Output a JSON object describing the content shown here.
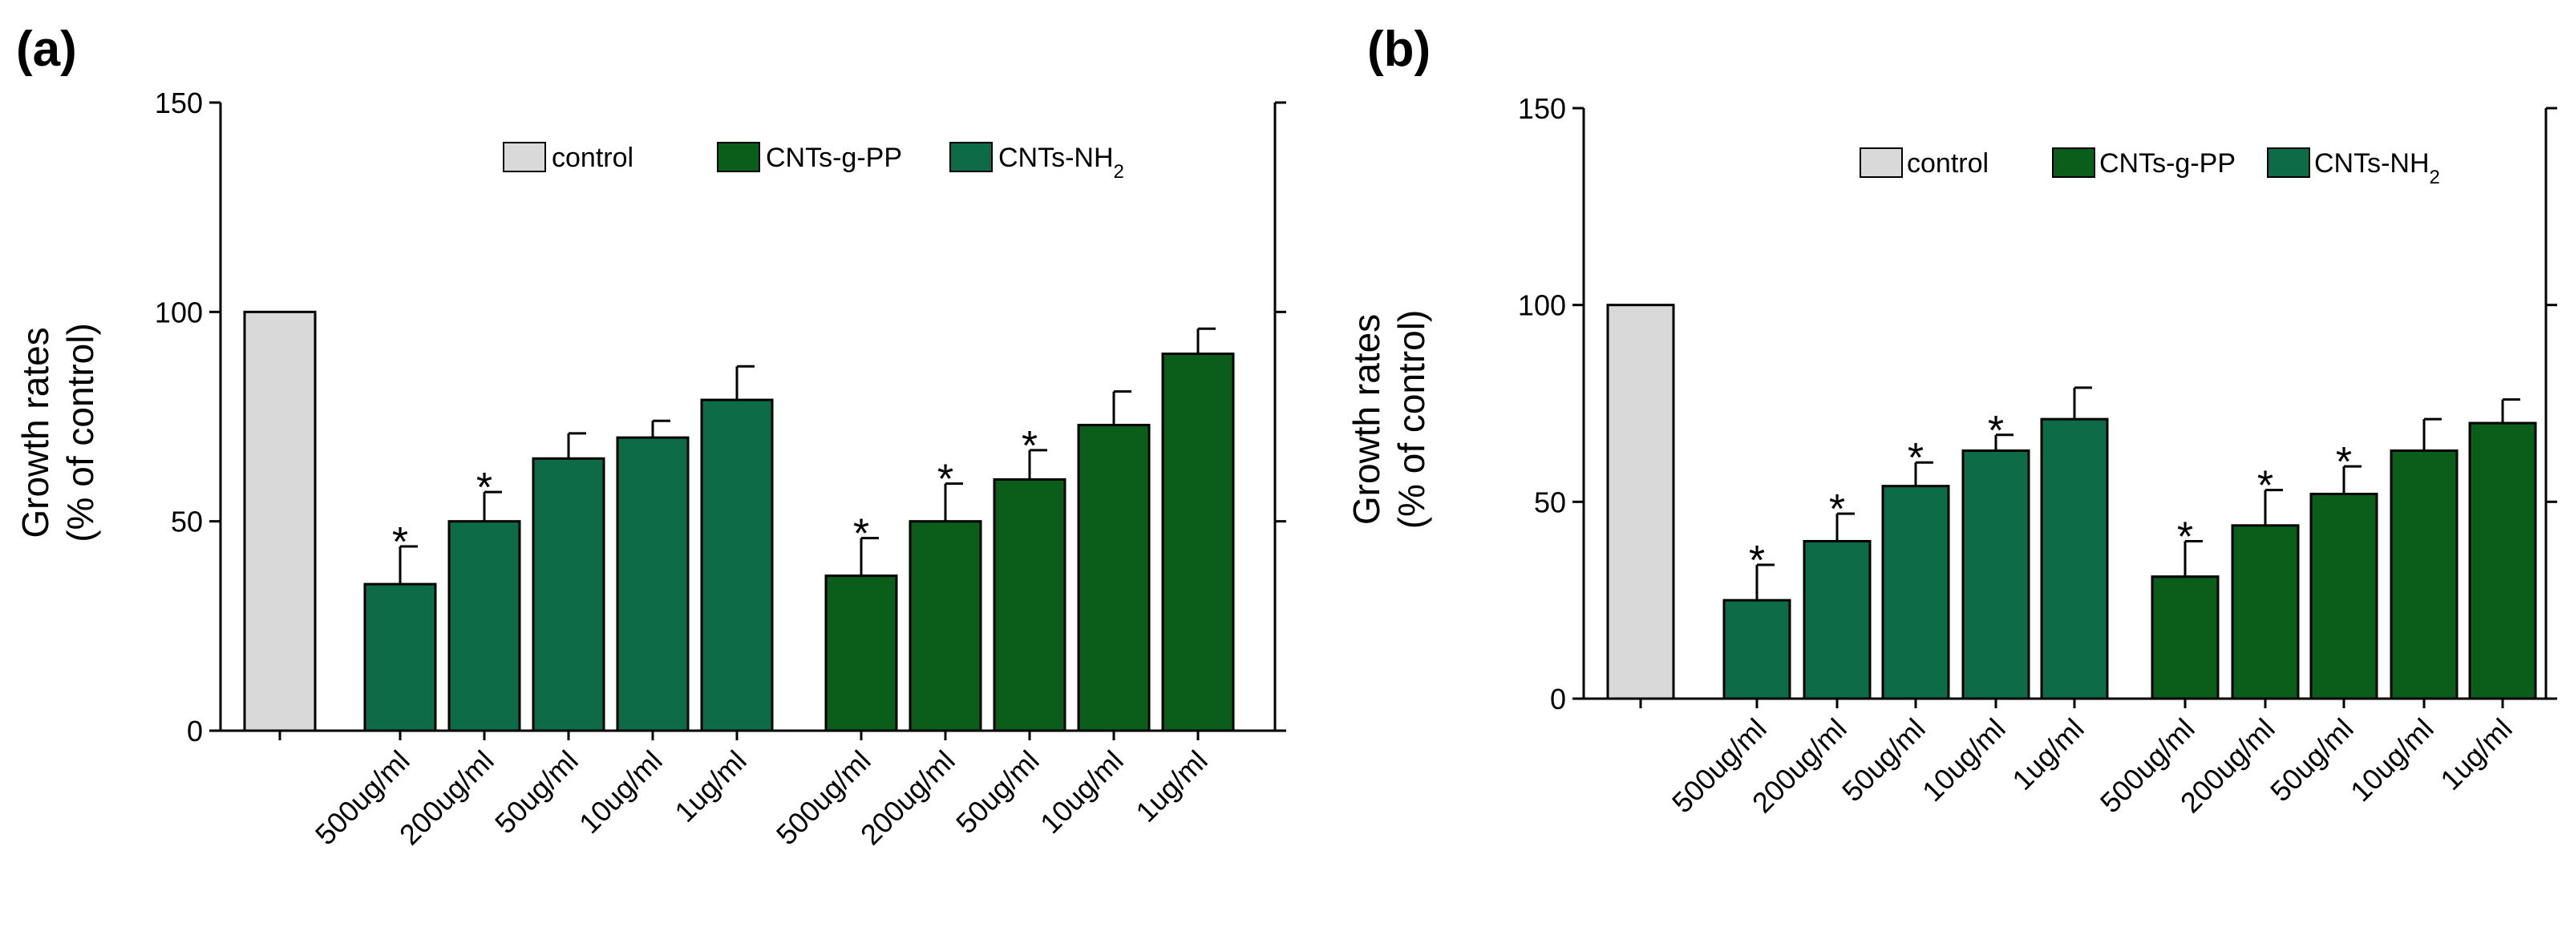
{
  "panels": [
    {
      "label": "(a)"
    },
    {
      "label": "(b)"
    }
  ],
  "colors": {
    "control": "#d9d9d9",
    "CNTs-g-PP": "#0b5e1a",
    "CNTs-NH2": "#0e6b47"
  },
  "chart_data": [
    {
      "type": "bar",
      "ylabel": [
        "Growth rates",
        "(% of control)"
      ],
      "ylim": [
        0,
        150
      ],
      "yticks": [
        0,
        50,
        100,
        150
      ],
      "legend_position": "top-right",
      "legend": [
        {
          "key": "control",
          "label": "control"
        },
        {
          "key": "CNTs-g-PP",
          "label": "CNTs-g-PP"
        },
        {
          "key": "CNTs-NH2",
          "label": "CNTs-NH",
          "sub": "2"
        }
      ],
      "bars": [
        {
          "category": "",
          "series": "control",
          "value": 100,
          "error": 0,
          "star": false
        },
        {
          "category": "500ug/ml",
          "series": "CNTs-NH2",
          "value": 35,
          "error": 9,
          "star": true
        },
        {
          "category": "200ug/ml",
          "series": "CNTs-NH2",
          "value": 50,
          "error": 7,
          "star": true
        },
        {
          "category": "50ug/ml",
          "series": "CNTs-NH2",
          "value": 65,
          "error": 6,
          "star": false
        },
        {
          "category": "10ug/ml",
          "series": "CNTs-NH2",
          "value": 70,
          "error": 4,
          "star": false
        },
        {
          "category": "1ug/ml",
          "series": "CNTs-NH2",
          "value": 79,
          "error": 8,
          "star": false
        },
        {
          "category": "500ug/ml",
          "series": "CNTs-g-PP",
          "value": 37,
          "error": 9,
          "star": true
        },
        {
          "category": "200ug/ml",
          "series": "CNTs-g-PP",
          "value": 50,
          "error": 9,
          "star": true
        },
        {
          "category": "50ug/ml",
          "series": "CNTs-g-PP",
          "value": 60,
          "error": 7,
          "star": true
        },
        {
          "category": "10ug/ml",
          "series": "CNTs-g-PP",
          "value": 73,
          "error": 8,
          "star": false
        },
        {
          "category": "1ug/ml",
          "series": "CNTs-g-PP",
          "value": 90,
          "error": 6,
          "star": false
        }
      ],
      "significance_marker": "*"
    },
    {
      "type": "bar",
      "ylabel": [
        "Growth rates",
        "(% of control)"
      ],
      "ylim": [
        0,
        150
      ],
      "yticks": [
        0,
        50,
        100,
        150
      ],
      "legend_position": "top-right",
      "legend": [
        {
          "key": "control",
          "label": "control"
        },
        {
          "key": "CNTs-g-PP",
          "label": "CNTs-g-PP"
        },
        {
          "key": "CNTs-NH2",
          "label": "CNTs-NH",
          "sub": "2"
        }
      ],
      "bars": [
        {
          "category": "",
          "series": "control",
          "value": 100,
          "error": 0,
          "star": false
        },
        {
          "category": "500ug/ml",
          "series": "CNTs-NH2",
          "value": 25,
          "error": 9,
          "star": true
        },
        {
          "category": "200ug/ml",
          "series": "CNTs-NH2",
          "value": 40,
          "error": 7,
          "star": true
        },
        {
          "category": "50ug/ml",
          "series": "CNTs-NH2",
          "value": 54,
          "error": 6,
          "star": true
        },
        {
          "category": "10ug/ml",
          "series": "CNTs-NH2",
          "value": 63,
          "error": 4,
          "star": true
        },
        {
          "category": "1ug/ml",
          "series": "CNTs-NH2",
          "value": 71,
          "error": 8,
          "star": false
        },
        {
          "category": "500ug/ml",
          "series": "CNTs-g-PP",
          "value": 31,
          "error": 9,
          "star": true
        },
        {
          "category": "200ug/ml",
          "series": "CNTs-g-PP",
          "value": 44,
          "error": 9,
          "star": true
        },
        {
          "category": "50ug/ml",
          "series": "CNTs-g-PP",
          "value": 52,
          "error": 7,
          "star": true
        },
        {
          "category": "10ug/ml",
          "series": "CNTs-g-PP",
          "value": 63,
          "error": 8,
          "star": false
        },
        {
          "category": "1ug/ml",
          "series": "CNTs-g-PP",
          "value": 70,
          "error": 6,
          "star": false
        }
      ],
      "significance_marker": "*"
    }
  ]
}
